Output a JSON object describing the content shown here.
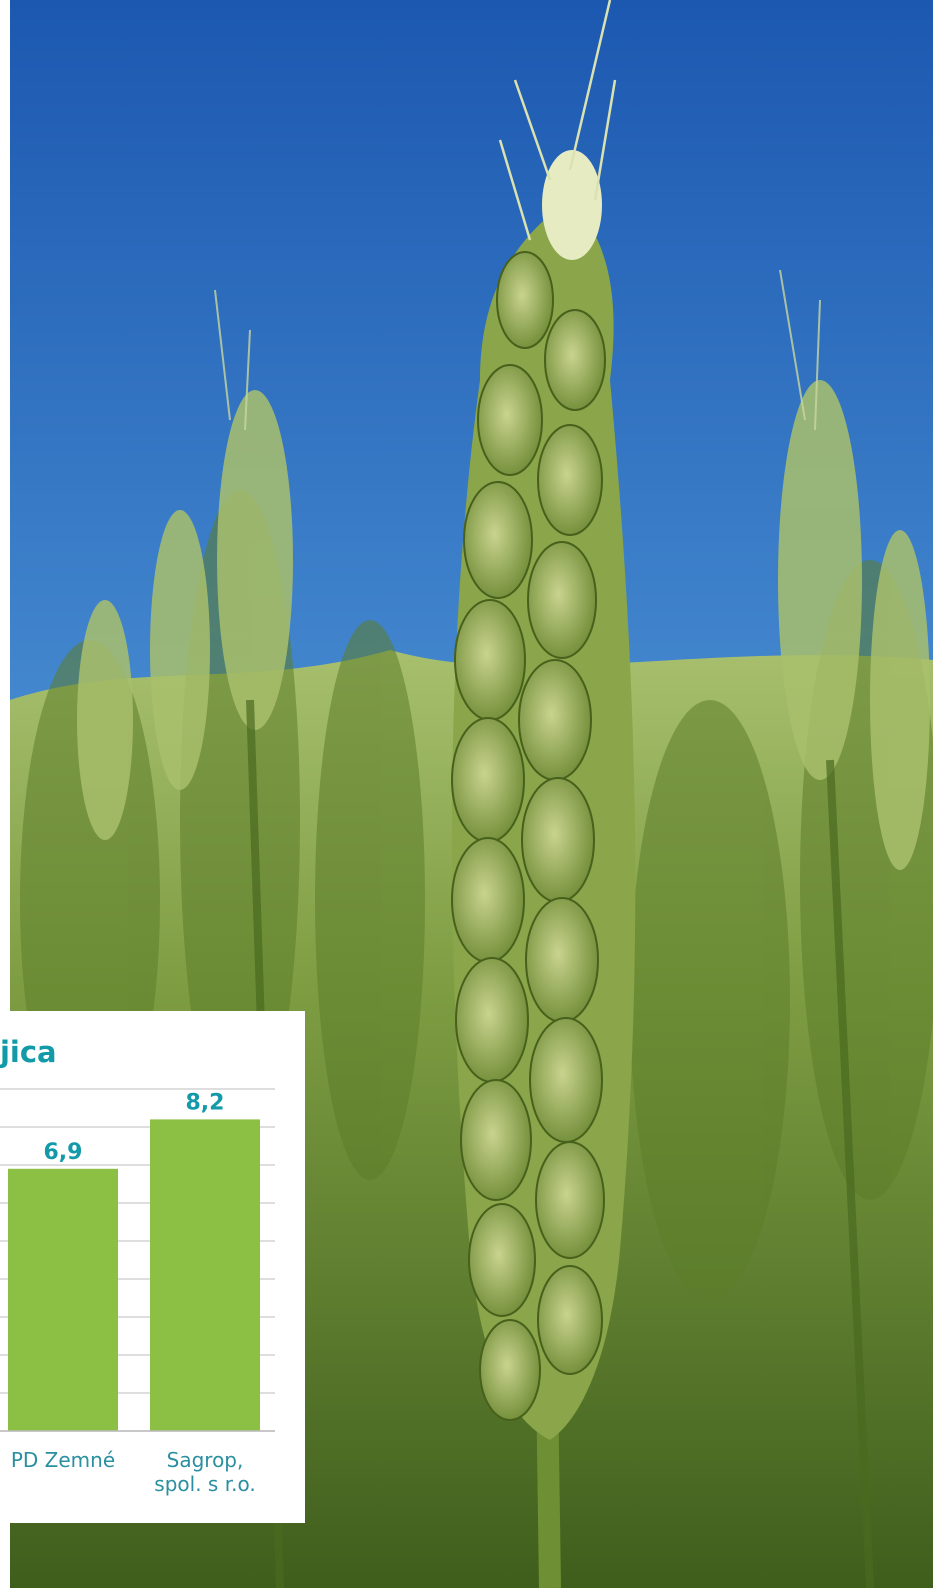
{
  "chart_data": {
    "type": "bar",
    "title": "ljica",
    "categories": [
      "PD Zemné",
      "Sagrop, spol. s r.o."
    ],
    "category_lines": [
      [
        "PD Zemné"
      ],
      [
        "Sagrop,",
        "spol. s r.o."
      ]
    ],
    "values": [
      6.9,
      8.2
    ],
    "value_labels": [
      "6,9",
      "8,2"
    ],
    "ylim": [
      0,
      9
    ],
    "grid": true,
    "bar_color": "#8bc044",
    "label_color": "#129aa8",
    "category_color": "#2a8fa0",
    "grid_color": "#d4d4d4"
  },
  "photo": {
    "sky_top": "#1f5fb8",
    "sky_bottom": "#6aaee0",
    "field_dark": "#4d6a24",
    "field_light": "#9dbf5c",
    "wheat": "#b9c98a"
  }
}
